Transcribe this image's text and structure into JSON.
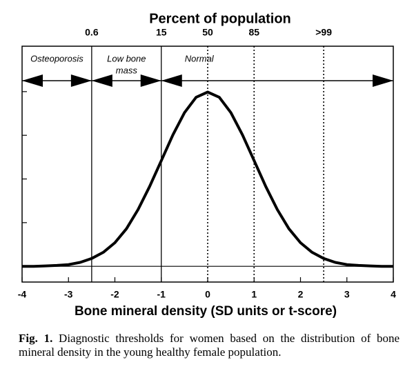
{
  "chart_data": {
    "type": "line",
    "title": "Percent of population",
    "xlabel": "Bone mineral density (SD units or t-score)",
    "x": [
      -4,
      -3.75,
      -3.5,
      -3.25,
      -3,
      -2.75,
      -2.5,
      -2.25,
      -2,
      -1.75,
      -1.5,
      -1.25,
      -1,
      -0.75,
      -0.5,
      -0.25,
      0,
      0.25,
      0.5,
      0.75,
      1,
      1.25,
      1.5,
      1.75,
      2,
      2.25,
      2.5,
      2.75,
      3,
      3.25,
      3.5,
      3.75,
      4
    ],
    "values": [
      0,
      0,
      0.001,
      0.002,
      0.004,
      0.009,
      0.018,
      0.032,
      0.054,
      0.086,
      0.13,
      0.183,
      0.242,
      0.301,
      0.352,
      0.387,
      0.399,
      0.387,
      0.352,
      0.301,
      0.242,
      0.183,
      0.13,
      0.086,
      0.054,
      0.032,
      0.018,
      0.009,
      0.004,
      0.002,
      0.001,
      0,
      0
    ],
    "color": "#000000",
    "xlim": [
      -4,
      4
    ],
    "xticks": [
      -4,
      -3,
      -2,
      -1,
      0,
      1,
      2,
      3,
      4
    ],
    "ylim": [
      -0.036,
      0.504
    ],
    "yticks": [
      0,
      0.1,
      0.2,
      0.3,
      0.4
    ],
    "x2ticks": [
      {
        "value": -2.5,
        "label": "0.6"
      },
      {
        "value": -1,
        "label": "15"
      },
      {
        "value": 0,
        "label": "50"
      },
      {
        "value": 1,
        "label": "85"
      },
      {
        "value": 2.5,
        "label": ">99"
      }
    ],
    "x2tick_line_styles": [
      "solid",
      "solid",
      "dotted",
      "dotted",
      "dotted"
    ],
    "regions": [
      {
        "label": [
          "Osteoporosis"
        ],
        "range": [
          -4,
          -2.5
        ]
      },
      {
        "label": [
          "Low bone",
          "mass"
        ],
        "range": [
          -2.5,
          -1
        ]
      },
      {
        "label": [
          "Normal"
        ],
        "range": [
          -1,
          4
        ]
      }
    ]
  },
  "caption": {
    "label": "Fig. 1.",
    "text": "Diagnostic thresholds for women based on the distribution of bone mineral density in the young healthy female population."
  }
}
